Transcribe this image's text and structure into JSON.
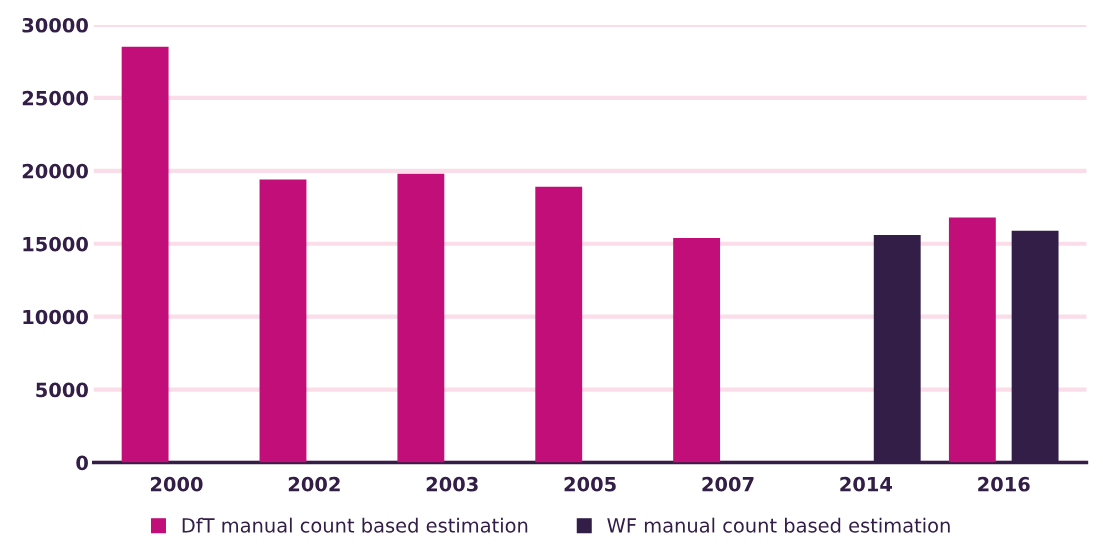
{
  "chart_data": {
    "type": "bar",
    "categories": [
      "2000",
      "2002",
      "2003",
      "2005",
      "2007",
      "2014",
      "2016"
    ],
    "series": [
      {
        "name": "DfT manual count based estimation",
        "color": "#c20e78",
        "values": [
          28500,
          19400,
          19800,
          18900,
          15400,
          null,
          16800
        ]
      },
      {
        "name": "WF manual count based estimation",
        "color": "#321e46",
        "values": [
          null,
          null,
          null,
          null,
          null,
          15600,
          15900
        ]
      }
    ],
    "ylim": [
      0,
      30000
    ],
    "yticks": [
      0,
      5000,
      10000,
      15000,
      20000,
      25000,
      30000
    ],
    "grid": "y",
    "legend": "bottom"
  }
}
